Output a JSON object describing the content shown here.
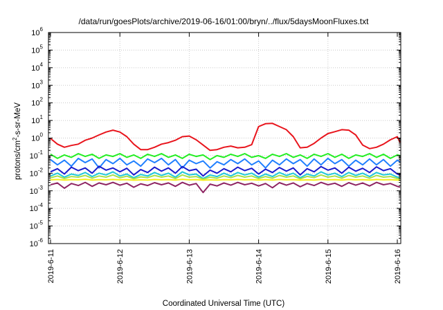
{
  "chart_data": {
    "type": "line",
    "title": "/data/run/goesPlots/archive/2019-06-16/01:00/bryn/../flux/5daysMoonFluxes.txt",
    "xlabel": "Coordinated Universal Time (UTC)",
    "ylabel": {
      "base": "protons/cm",
      "sup": "2",
      "rest": "-s-sr-MeV"
    },
    "y_scale": "log",
    "ylim": [
      1e-06,
      1000000.0
    ],
    "xlim": [
      "2019-06-11 00:00",
      "2019-06-16 01:00"
    ],
    "x_ticks": [
      "2019-6-11",
      "2019-6-12",
      "2019-6-13",
      "2019-6-14",
      "2019-6-15",
      "2019-6-16"
    ],
    "y_ticks": [
      {
        "value": 1e-06,
        "base": "10",
        "exp": "-6"
      },
      {
        "value": 1e-05,
        "base": "10",
        "exp": "-5"
      },
      {
        "value": 0.0001,
        "base": "10",
        "exp": "-4"
      },
      {
        "value": 0.001,
        "base": "10",
        "exp": "-3"
      },
      {
        "value": 0.01,
        "base": "10",
        "exp": "-2"
      },
      {
        "value": 0.1,
        "base": "10",
        "exp": "-1"
      },
      {
        "value": 1,
        "base": "10",
        "exp": "0"
      },
      {
        "value": 10,
        "base": "10",
        "exp": "1"
      },
      {
        "value": 100,
        "base": "10",
        "exp": "2"
      },
      {
        "value": 1000,
        "base": "10",
        "exp": "3"
      },
      {
        "value": 10000,
        "base": "10",
        "exp": "4"
      },
      {
        "value": 100000,
        "base": "10",
        "exp": "5"
      },
      {
        "value": 1000000,
        "base": "10",
        "exp": "6"
      }
    ],
    "grid": true,
    "series": [
      {
        "color": "#e8141c",
        "x_days": [
          0.0,
          0.1,
          0.2,
          0.3,
          0.4,
          0.5,
          0.6,
          0.7,
          0.8,
          0.9,
          1.0,
          1.1,
          1.2,
          1.3,
          1.4,
          1.5,
          1.6,
          1.7,
          1.8,
          1.9,
          2.0,
          2.1,
          2.2,
          2.3,
          2.4,
          2.5,
          2.6,
          2.7,
          2.8,
          2.9,
          3.0,
          3.1,
          3.2,
          3.3,
          3.4,
          3.5,
          3.6,
          3.7,
          3.8,
          3.9,
          4.0,
          4.1,
          4.2,
          4.3,
          4.4,
          4.5,
          4.6,
          4.7,
          4.8,
          4.9,
          5.0,
          5.04
        ],
        "values": [
          0.95,
          0.45,
          0.3,
          0.38,
          0.45,
          0.75,
          1.0,
          1.5,
          2.2,
          2.8,
          2.2,
          1.2,
          0.45,
          0.22,
          0.22,
          0.3,
          0.45,
          0.55,
          0.75,
          1.2,
          1.3,
          0.8,
          0.4,
          0.2,
          0.22,
          0.3,
          0.35,
          0.28,
          0.3,
          0.42,
          4.5,
          6.5,
          6.8,
          4.5,
          3.0,
          1.2,
          0.28,
          0.3,
          0.5,
          1.0,
          1.8,
          2.3,
          3.0,
          2.8,
          1.5,
          0.4,
          0.25,
          0.3,
          0.45,
          0.8,
          1.2,
          0.55
        ]
      },
      {
        "color": "#22ee22",
        "x_days": [
          0.0,
          0.1,
          0.2,
          0.3,
          0.4,
          0.5,
          0.6,
          0.7,
          0.8,
          0.9,
          1.0,
          1.1,
          1.2,
          1.3,
          1.4,
          1.5,
          1.6,
          1.7,
          1.8,
          1.9,
          2.0,
          2.1,
          2.2,
          2.3,
          2.4,
          2.5,
          2.6,
          2.7,
          2.8,
          2.9,
          3.0,
          3.1,
          3.2,
          3.3,
          3.4,
          3.5,
          3.6,
          3.7,
          3.8,
          3.9,
          4.0,
          4.1,
          4.2,
          4.3,
          4.4,
          4.5,
          4.6,
          4.7,
          4.8,
          4.9,
          5.0,
          5.04
        ],
        "values": [
          0.12,
          0.07,
          0.11,
          0.08,
          0.13,
          0.09,
          0.12,
          0.07,
          0.11,
          0.09,
          0.13,
          0.08,
          0.11,
          0.07,
          0.12,
          0.09,
          0.13,
          0.08,
          0.11,
          0.07,
          0.12,
          0.09,
          0.11,
          0.06,
          0.1,
          0.08,
          0.12,
          0.09,
          0.13,
          0.08,
          0.1,
          0.07,
          0.12,
          0.09,
          0.13,
          0.08,
          0.11,
          0.07,
          0.12,
          0.09,
          0.13,
          0.08,
          0.12,
          0.07,
          0.11,
          0.09,
          0.13,
          0.08,
          0.12,
          0.07,
          0.11,
          0.1
        ]
      },
      {
        "color": "#1f7fff",
        "x_days": [
          0.0,
          0.1,
          0.2,
          0.3,
          0.4,
          0.5,
          0.6,
          0.7,
          0.8,
          0.9,
          1.0,
          1.1,
          1.2,
          1.3,
          1.4,
          1.5,
          1.6,
          1.7,
          1.8,
          1.9,
          2.0,
          2.1,
          2.2,
          2.3,
          2.4,
          2.5,
          2.6,
          2.7,
          2.8,
          2.9,
          3.0,
          3.1,
          3.2,
          3.3,
          3.4,
          3.5,
          3.6,
          3.7,
          3.8,
          3.9,
          4.0,
          4.1,
          4.2,
          4.3,
          4.4,
          4.5,
          4.6,
          4.7,
          4.8,
          4.9,
          5.0,
          5.04
        ],
        "values": [
          0.06,
          0.03,
          0.055,
          0.025,
          0.07,
          0.04,
          0.065,
          0.02,
          0.06,
          0.035,
          0.07,
          0.03,
          0.05,
          0.025,
          0.065,
          0.04,
          0.07,
          0.03,
          0.06,
          0.02,
          0.055,
          0.035,
          0.05,
          0.02,
          0.045,
          0.03,
          0.06,
          0.035,
          0.065,
          0.03,
          0.05,
          0.02,
          0.055,
          0.03,
          0.065,
          0.035,
          0.06,
          0.025,
          0.065,
          0.03,
          0.07,
          0.035,
          0.06,
          0.025,
          0.055,
          0.03,
          0.065,
          0.03,
          0.06,
          0.025,
          0.055,
          0.045
        ]
      },
      {
        "color": "#1a1acc",
        "x_days": [
          0.0,
          0.1,
          0.2,
          0.3,
          0.4,
          0.5,
          0.6,
          0.7,
          0.8,
          0.9,
          1.0,
          1.1,
          1.2,
          1.3,
          1.4,
          1.5,
          1.6,
          1.7,
          1.8,
          1.9,
          2.0,
          2.1,
          2.2,
          2.3,
          2.4,
          2.5,
          2.6,
          2.7,
          2.8,
          2.9,
          3.0,
          3.1,
          3.2,
          3.3,
          3.4,
          3.5,
          3.6,
          3.7,
          3.8,
          3.9,
          4.0,
          4.1,
          4.2,
          4.3,
          4.4,
          4.5,
          4.6,
          4.7,
          4.8,
          4.9,
          5.0,
          5.04
        ],
        "values": [
          0.012,
          0.018,
          0.009,
          0.022,
          0.014,
          0.02,
          0.01,
          0.025,
          0.015,
          0.02,
          0.012,
          0.019,
          0.008,
          0.016,
          0.011,
          0.022,
          0.013,
          0.02,
          0.01,
          0.024,
          0.014,
          0.017,
          0.007,
          0.015,
          0.01,
          0.018,
          0.012,
          0.022,
          0.014,
          0.019,
          0.009,
          0.017,
          0.011,
          0.021,
          0.013,
          0.02,
          0.008,
          0.018,
          0.012,
          0.024,
          0.015,
          0.02,
          0.01,
          0.022,
          0.013,
          0.019,
          0.011,
          0.023,
          0.014,
          0.018,
          0.009,
          0.008
        ]
      },
      {
        "color": "#20c8d8",
        "x_days": [
          0.0,
          0.1,
          0.2,
          0.3,
          0.4,
          0.5,
          0.6,
          0.7,
          0.8,
          0.9,
          1.0,
          1.1,
          1.2,
          1.3,
          1.4,
          1.5,
          1.6,
          1.7,
          1.8,
          1.9,
          2.0,
          2.1,
          2.2,
          2.3,
          2.4,
          2.5,
          2.6,
          2.7,
          2.8,
          2.9,
          3.0,
          3.1,
          3.2,
          3.3,
          3.4,
          3.5,
          3.6,
          3.7,
          3.8,
          3.9,
          4.0,
          4.1,
          4.2,
          4.3,
          4.4,
          4.5,
          4.6,
          4.7,
          4.8,
          4.9,
          5.0,
          5.04
        ],
        "values": [
          0.007,
          0.01,
          0.006,
          0.009,
          0.0075,
          0.011,
          0.0065,
          0.01,
          0.008,
          0.012,
          0.007,
          0.009,
          0.0055,
          0.0085,
          0.007,
          0.011,
          0.0075,
          0.01,
          0.006,
          0.012,
          0.008,
          0.009,
          0.005,
          0.008,
          0.0065,
          0.01,
          0.007,
          0.011,
          0.008,
          0.01,
          0.006,
          0.009,
          0.0065,
          0.011,
          0.0075,
          0.01,
          0.0055,
          0.009,
          0.007,
          0.012,
          0.008,
          0.01,
          0.0065,
          0.011,
          0.0075,
          0.01,
          0.0065,
          0.011,
          0.008,
          0.009,
          0.006,
          0.0055
        ]
      },
      {
        "color": "#a8e04a",
        "x_days": [
          0.0,
          0.1,
          0.2,
          0.3,
          0.4,
          0.5,
          0.6,
          0.7,
          0.8,
          0.9,
          1.0,
          1.1,
          1.2,
          1.3,
          1.4,
          1.5,
          1.6,
          1.7,
          1.8,
          1.9,
          2.0,
          2.1,
          2.2,
          2.3,
          2.4,
          2.5,
          2.6,
          2.7,
          2.8,
          2.9,
          3.0,
          3.1,
          3.2,
          3.3,
          3.4,
          3.5,
          3.6,
          3.7,
          3.8,
          3.9,
          4.0,
          4.1,
          4.2,
          4.3,
          4.4,
          4.5,
          4.6,
          4.7,
          4.8,
          4.9,
          5.0,
          5.04
        ],
        "values": [
          0.0055,
          0.007,
          0.005,
          0.0065,
          0.006,
          0.0075,
          0.0052,
          0.007,
          0.006,
          0.008,
          0.0055,
          0.0068,
          0.0048,
          0.0062,
          0.0056,
          0.0075,
          0.006,
          0.007,
          0.005,
          0.008,
          0.006,
          0.0065,
          0.0045,
          0.006,
          0.0052,
          0.007,
          0.0056,
          0.0075,
          0.006,
          0.007,
          0.005,
          0.0065,
          0.0052,
          0.0075,
          0.006,
          0.007,
          0.0048,
          0.0066,
          0.0056,
          0.008,
          0.006,
          0.007,
          0.0052,
          0.0075,
          0.006,
          0.007,
          0.0052,
          0.0075,
          0.006,
          0.0065,
          0.005,
          0.0048
        ]
      },
      {
        "color": "#f5ee1a",
        "x_days": [
          0.0,
          0.1,
          0.2,
          0.3,
          0.4,
          0.5,
          0.6,
          0.7,
          0.8,
          0.9,
          1.0,
          1.1,
          1.2,
          1.3,
          1.4,
          1.5,
          1.6,
          1.7,
          1.8,
          1.9,
          2.0,
          2.1,
          2.2,
          2.3,
          2.4,
          2.5,
          2.6,
          2.7,
          2.8,
          2.9,
          3.0,
          3.1,
          3.2,
          3.3,
          3.4,
          3.5,
          3.6,
          3.7,
          3.8,
          3.9,
          4.0,
          4.1,
          4.2,
          4.3,
          4.4,
          4.5,
          4.6,
          4.7,
          4.8,
          4.9,
          5.0,
          5.04
        ],
        "values": [
          0.0042,
          0.0044,
          0.0041,
          0.0043,
          0.0042,
          0.0045,
          0.0041,
          0.0043,
          0.0042,
          0.0044,
          0.0042,
          0.0043,
          0.004,
          0.0042,
          0.0041,
          0.0044,
          0.0042,
          0.0043,
          0.0041,
          0.0045,
          0.0042,
          0.0043,
          0.004,
          0.0042,
          0.0041,
          0.0043,
          0.0042,
          0.0044,
          0.0042,
          0.0043,
          0.0041,
          0.0043,
          0.0041,
          0.0044,
          0.0042,
          0.0043,
          0.004,
          0.0042,
          0.0041,
          0.0044,
          0.0042,
          0.0043,
          0.0041,
          0.0044,
          0.0042,
          0.0043,
          0.0041,
          0.0044,
          0.0042,
          0.0043,
          0.0041,
          0.004
        ]
      },
      {
        "color": "#8e2462",
        "x_days": [
          0.0,
          0.1,
          0.2,
          0.3,
          0.4,
          0.5,
          0.6,
          0.7,
          0.8,
          0.9,
          1.0,
          1.1,
          1.2,
          1.3,
          1.4,
          1.5,
          1.6,
          1.7,
          1.8,
          1.9,
          2.0,
          2.1,
          2.2,
          2.3,
          2.4,
          2.5,
          2.6,
          2.7,
          2.8,
          2.9,
          3.0,
          3.1,
          3.2,
          3.3,
          3.4,
          3.5,
          3.6,
          3.7,
          3.8,
          3.9,
          4.0,
          4.1,
          4.2,
          4.3,
          4.4,
          4.5,
          4.6,
          4.7,
          4.8,
          4.9,
          5.0,
          5.04
        ],
        "values": [
          0.0022,
          0.0028,
          0.0014,
          0.0026,
          0.002,
          0.003,
          0.0018,
          0.0028,
          0.0022,
          0.003,
          0.0021,
          0.0027,
          0.0016,
          0.0025,
          0.002,
          0.0029,
          0.0022,
          0.0028,
          0.0018,
          0.003,
          0.0021,
          0.0026,
          0.0008,
          0.0024,
          0.0019,
          0.0028,
          0.0021,
          0.003,
          0.0022,
          0.0027,
          0.0019,
          0.0026,
          0.0015,
          0.0029,
          0.0021,
          0.0028,
          0.0017,
          0.0026,
          0.002,
          0.003,
          0.0022,
          0.0027,
          0.0018,
          0.0029,
          0.0021,
          0.0028,
          0.0019,
          0.003,
          0.0022,
          0.0026,
          0.0018,
          0.0016
        ]
      }
    ]
  }
}
